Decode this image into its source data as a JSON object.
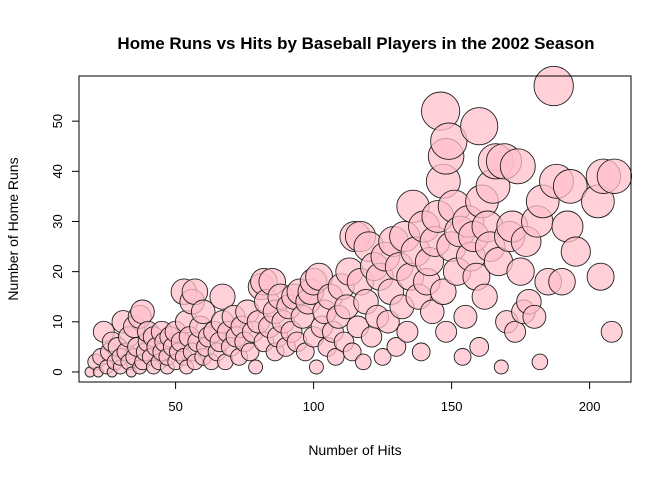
{
  "chart_data": {
    "type": "scatter",
    "title": "Home Runs vs Hits by Baseball Players in the 2002 Season",
    "xlabel": "Number of Hits",
    "ylabel": "Number of Home Runs",
    "xlim": [
      15,
      215
    ],
    "ylim": [
      -2,
      59
    ],
    "xticks": [
      50,
      100,
      150,
      200
    ],
    "yticks": [
      0,
      10,
      20,
      30,
      40,
      50
    ],
    "grid": false,
    "legend": "none",
    "colors": {
      "fill": "#FFC0CB",
      "stroke": "#222222"
    },
    "points": [
      {
        "x": 19,
        "y": 0
      },
      {
        "x": 21,
        "y": 2
      },
      {
        "x": 22,
        "y": 0
      },
      {
        "x": 23,
        "y": 3
      },
      {
        "x": 24,
        "y": 8
      },
      {
        "x": 25,
        "y": 1
      },
      {
        "x": 26,
        "y": 4
      },
      {
        "x": 27,
        "y": 0
      },
      {
        "x": 27,
        "y": 6
      },
      {
        "x": 28,
        "y": 2
      },
      {
        "x": 29,
        "y": 5
      },
      {
        "x": 30,
        "y": 1
      },
      {
        "x": 30,
        "y": 3
      },
      {
        "x": 31,
        "y": 10
      },
      {
        "x": 32,
        "y": 4
      },
      {
        "x": 33,
        "y": 2
      },
      {
        "x": 33,
        "y": 7
      },
      {
        "x": 34,
        "y": 0
      },
      {
        "x": 35,
        "y": 3
      },
      {
        "x": 35,
        "y": 9
      },
      {
        "x": 36,
        "y": 5
      },
      {
        "x": 37,
        "y": 1
      },
      {
        "x": 37,
        "y": 11
      },
      {
        "x": 38,
        "y": 2
      },
      {
        "x": 38,
        "y": 12
      },
      {
        "x": 39,
        "y": 4
      },
      {
        "x": 40,
        "y": 6
      },
      {
        "x": 40,
        "y": 8
      },
      {
        "x": 41,
        "y": 3
      },
      {
        "x": 42,
        "y": 1
      },
      {
        "x": 42,
        "y": 7
      },
      {
        "x": 43,
        "y": 5
      },
      {
        "x": 44,
        "y": 2
      },
      {
        "x": 45,
        "y": 4
      },
      {
        "x": 45,
        "y": 8
      },
      {
        "x": 46,
        "y": 6
      },
      {
        "x": 47,
        "y": 1
      },
      {
        "x": 47,
        "y": 3
      },
      {
        "x": 48,
        "y": 7
      },
      {
        "x": 49,
        "y": 5
      },
      {
        "x": 50,
        "y": 2
      },
      {
        "x": 50,
        "y": 8
      },
      {
        "x": 51,
        "y": 4
      },
      {
        "x": 52,
        "y": 6
      },
      {
        "x": 53,
        "y": 3
      },
      {
        "x": 53,
        "y": 16
      },
      {
        "x": 54,
        "y": 1
      },
      {
        "x": 54,
        "y": 10
      },
      {
        "x": 55,
        "y": 7
      },
      {
        "x": 56,
        "y": 4
      },
      {
        "x": 56,
        "y": 14
      },
      {
        "x": 57,
        "y": 2
      },
      {
        "x": 57,
        "y": 16
      },
      {
        "x": 58,
        "y": 6
      },
      {
        "x": 59,
        "y": 9
      },
      {
        "x": 60,
        "y": 3
      },
      {
        "x": 60,
        "y": 12
      },
      {
        "x": 61,
        "y": 5
      },
      {
        "x": 62,
        "y": 7
      },
      {
        "x": 63,
        "y": 2
      },
      {
        "x": 64,
        "y": 8
      },
      {
        "x": 65,
        "y": 4
      },
      {
        "x": 66,
        "y": 6
      },
      {
        "x": 67,
        "y": 10
      },
      {
        "x": 67,
        "y": 15
      },
      {
        "x": 68,
        "y": 2
      },
      {
        "x": 69,
        "y": 8
      },
      {
        "x": 70,
        "y": 5
      },
      {
        "x": 71,
        "y": 11
      },
      {
        "x": 72,
        "y": 7
      },
      {
        "x": 73,
        "y": 3
      },
      {
        "x": 74,
        "y": 9
      },
      {
        "x": 75,
        "y": 6
      },
      {
        "x": 76,
        "y": 12
      },
      {
        "x": 77,
        "y": 4
      },
      {
        "x": 78,
        "y": 8
      },
      {
        "x": 79,
        "y": 1
      },
      {
        "x": 80,
        "y": 10
      },
      {
        "x": 81,
        "y": 17
      },
      {
        "x": 82,
        "y": 18
      },
      {
        "x": 82,
        "y": 6
      },
      {
        "x": 83,
        "y": 14
      },
      {
        "x": 84,
        "y": 9
      },
      {
        "x": 85,
        "y": 18
      },
      {
        "x": 86,
        "y": 4
      },
      {
        "x": 86,
        "y": 12
      },
      {
        "x": 87,
        "y": 7
      },
      {
        "x": 88,
        "y": 15
      },
      {
        "x": 89,
        "y": 10
      },
      {
        "x": 90,
        "y": 5
      },
      {
        "x": 91,
        "y": 13
      },
      {
        "x": 92,
        "y": 8
      },
      {
        "x": 93,
        "y": 15
      },
      {
        "x": 94,
        "y": 6
      },
      {
        "x": 95,
        "y": 16
      },
      {
        "x": 96,
        "y": 11
      },
      {
        "x": 97,
        "y": 4
      },
      {
        "x": 98,
        "y": 14
      },
      {
        "x": 99,
        "y": 16
      },
      {
        "x": 100,
        "y": 7
      },
      {
        "x": 100,
        "y": 18
      },
      {
        "x": 101,
        "y": 1
      },
      {
        "x": 102,
        "y": 19
      },
      {
        "x": 103,
        "y": 9
      },
      {
        "x": 104,
        "y": 12
      },
      {
        "x": 105,
        "y": 5
      },
      {
        "x": 106,
        "y": 15
      },
      {
        "x": 107,
        "y": 8
      },
      {
        "x": 108,
        "y": 3
      },
      {
        "x": 109,
        "y": 11
      },
      {
        "x": 110,
        "y": 17
      },
      {
        "x": 111,
        "y": 6
      },
      {
        "x": 112,
        "y": 13
      },
      {
        "x": 113,
        "y": 20
      },
      {
        "x": 114,
        "y": 4
      },
      {
        "x": 115,
        "y": 27
      },
      {
        "x": 116,
        "y": 9
      },
      {
        "x": 117,
        "y": 18
      },
      {
        "x": 117,
        "y": 27
      },
      {
        "x": 118,
        "y": 2
      },
      {
        "x": 119,
        "y": 14
      },
      {
        "x": 120,
        "y": 25
      },
      {
        "x": 121,
        "y": 7
      },
      {
        "x": 122,
        "y": 21
      },
      {
        "x": 123,
        "y": 11
      },
      {
        "x": 124,
        "y": 19
      },
      {
        "x": 125,
        "y": 3
      },
      {
        "x": 126,
        "y": 23
      },
      {
        "x": 127,
        "y": 10
      },
      {
        "x": 128,
        "y": 16
      },
      {
        "x": 129,
        "y": 26
      },
      {
        "x": 130,
        "y": 5
      },
      {
        "x": 131,
        "y": 21
      },
      {
        "x": 132,
        "y": 13
      },
      {
        "x": 133,
        "y": 27
      },
      {
        "x": 134,
        "y": 8
      },
      {
        "x": 135,
        "y": 19
      },
      {
        "x": 136,
        "y": 33
      },
      {
        "x": 137,
        "y": 24
      },
      {
        "x": 138,
        "y": 15
      },
      {
        "x": 139,
        "y": 4
      },
      {
        "x": 140,
        "y": 29
      },
      {
        "x": 141,
        "y": 18
      },
      {
        "x": 142,
        "y": 22
      },
      {
        "x": 143,
        "y": 12
      },
      {
        "x": 144,
        "y": 26
      },
      {
        "x": 145,
        "y": 31
      },
      {
        "x": 146,
        "y": 52
      },
      {
        "x": 147,
        "y": 16
      },
      {
        "x": 147,
        "y": 38
      },
      {
        "x": 148,
        "y": 8
      },
      {
        "x": 148,
        "y": 43
      },
      {
        "x": 149,
        "y": 46
      },
      {
        "x": 150,
        "y": 25
      },
      {
        "x": 151,
        "y": 33
      },
      {
        "x": 152,
        "y": 20
      },
      {
        "x": 153,
        "y": 28
      },
      {
        "x": 154,
        "y": 3
      },
      {
        "x": 155,
        "y": 11
      },
      {
        "x": 156,
        "y": 30
      },
      {
        "x": 157,
        "y": 23
      },
      {
        "x": 158,
        "y": 27
      },
      {
        "x": 159,
        "y": 19
      },
      {
        "x": 160,
        "y": 49
      },
      {
        "x": 160,
        "y": 5
      },
      {
        "x": 161,
        "y": 34
      },
      {
        "x": 162,
        "y": 15
      },
      {
        "x": 163,
        "y": 29
      },
      {
        "x": 164,
        "y": 25
      },
      {
        "x": 165,
        "y": 37
      },
      {
        "x": 166,
        "y": 42
      },
      {
        "x": 167,
        "y": 22
      },
      {
        "x": 168,
        "y": 1
      },
      {
        "x": 169,
        "y": 42
      },
      {
        "x": 170,
        "y": 10
      },
      {
        "x": 171,
        "y": 27
      },
      {
        "x": 172,
        "y": 29
      },
      {
        "x": 173,
        "y": 8
      },
      {
        "x": 174,
        "y": 41
      },
      {
        "x": 175,
        "y": 20
      },
      {
        "x": 176,
        "y": 12
      },
      {
        "x": 177,
        "y": 26
      },
      {
        "x": 178,
        "y": 14
      },
      {
        "x": 180,
        "y": 11
      },
      {
        "x": 181,
        "y": 30
      },
      {
        "x": 182,
        "y": 2
      },
      {
        "x": 183,
        "y": 34
      },
      {
        "x": 185,
        "y": 18
      },
      {
        "x": 187,
        "y": 57
      },
      {
        "x": 188,
        "y": 38
      },
      {
        "x": 190,
        "y": 18
      },
      {
        "x": 192,
        "y": 29
      },
      {
        "x": 193,
        "y": 37
      },
      {
        "x": 195,
        "y": 24
      },
      {
        "x": 203,
        "y": 34
      },
      {
        "x": 204,
        "y": 19
      },
      {
        "x": 205,
        "y": 39
      },
      {
        "x": 208,
        "y": 8
      },
      {
        "x": 209,
        "y": 39
      }
    ]
  }
}
